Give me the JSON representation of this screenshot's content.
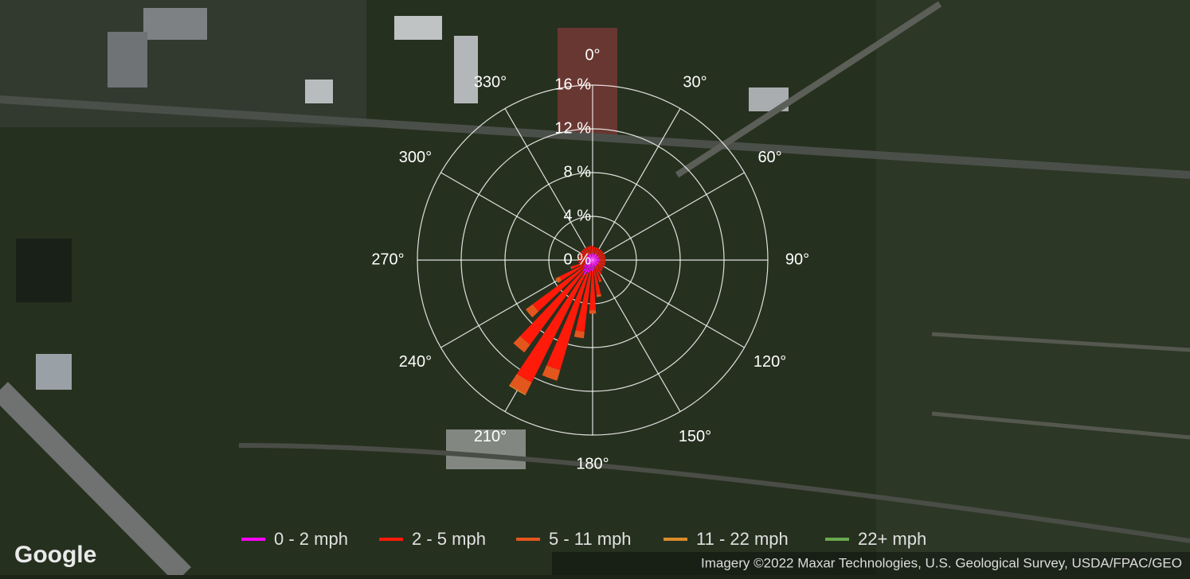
{
  "map": {
    "logo": "Google",
    "attribution": "Imagery ©2022 Maxar Technologies, U.S. Geological Survey, USDA/FPAC/GEO"
  },
  "chart_data": {
    "type": "windrose",
    "x": [
      0,
      10,
      20,
      30,
      40,
      50,
      60,
      70,
      80,
      90,
      100,
      110,
      120,
      130,
      140,
      150,
      160,
      170,
      180,
      190,
      200,
      210,
      220,
      230,
      240,
      250,
      260,
      270,
      280,
      290,
      300,
      310,
      320,
      330,
      340,
      350
    ],
    "series": [
      {
        "name": "0 - 2 mph",
        "color": "#ff00ff",
        "values": [
          0.6,
          0.6,
          0.6,
          0.6,
          0.6,
          0.6,
          0.6,
          0.6,
          0.6,
          0.6,
          0.6,
          0.6,
          0.6,
          0.6,
          0.6,
          0.6,
          0.6,
          0.8,
          1,
          1,
          1.2,
          1.5,
          1.3,
          1,
          0.8,
          0.7,
          0.6,
          0.6,
          0.6,
          0.6,
          0.6,
          0.6,
          0.6,
          0.6,
          0.6,
          0.6
        ]
      },
      {
        "name": "2 - 5 mph",
        "color": "#ff1a0a",
        "values": [
          0.7,
          0.6,
          0.6,
          0.6,
          0.6,
          0.6,
          0.6,
          0.6,
          0.6,
          0.6,
          0.6,
          0.6,
          0.6,
          0.6,
          0.7,
          0.9,
          1.4,
          2.4,
          3.6,
          5.6,
          9.3,
          11,
          8.3,
          5.8,
          2.6,
          1.3,
          0.7,
          0.7,
          0.7,
          0.7,
          0.7,
          0.7,
          0.7,
          0.7,
          0.7,
          0.7
        ]
      },
      {
        "name": "5 - 11 mph",
        "color": "#e3561e",
        "values": [
          0,
          0,
          0,
          0,
          0,
          0,
          0,
          0,
          0,
          0,
          0,
          0,
          0,
          0,
          0,
          0,
          0.1,
          0.2,
          0.3,
          0.6,
          1,
          1.2,
          0.9,
          0.8,
          0.4,
          0.1,
          0,
          0,
          0,
          0,
          0,
          0,
          0,
          0,
          0,
          0
        ]
      },
      {
        "name": "11 - 22 mph",
        "color": "#d98c2b",
        "values": [
          0,
          0,
          0,
          0,
          0,
          0,
          0,
          0,
          0,
          0,
          0,
          0,
          0,
          0,
          0,
          0,
          0,
          0,
          0,
          0,
          0,
          0.1,
          0,
          0,
          0,
          0,
          0,
          0,
          0,
          0,
          0,
          0,
          0,
          0,
          0,
          0
        ]
      },
      {
        "name": "22+ mph",
        "color": "#6aa84f",
        "values": [
          0,
          0,
          0,
          0,
          0,
          0,
          0,
          0,
          0,
          0,
          0,
          0,
          0,
          0,
          0,
          0,
          0,
          0,
          0,
          0,
          0,
          0,
          0,
          0,
          0,
          0,
          0,
          0,
          0,
          0,
          0,
          0,
          0,
          0,
          0,
          0
        ]
      }
    ],
    "rlim": [
      0,
      16
    ],
    "rticks": [
      {
        "value": 0,
        "label": "0 %"
      },
      {
        "value": 4,
        "label": "4 %"
      },
      {
        "value": 8,
        "label": "8 %"
      },
      {
        "value": 12,
        "label": "12 %"
      },
      {
        "value": 16,
        "label": "16 %"
      }
    ],
    "angleticks": [
      {
        "value": 0,
        "label": "0°"
      },
      {
        "value": 30,
        "label": "30°"
      },
      {
        "value": 60,
        "label": "60°"
      },
      {
        "value": 90,
        "label": "90°"
      },
      {
        "value": 120,
        "label": "120°"
      },
      {
        "value": 150,
        "label": "150°"
      },
      {
        "value": 180,
        "label": "180°"
      },
      {
        "value": 210,
        "label": "210°"
      },
      {
        "value": 240,
        "label": "240°"
      },
      {
        "value": 270,
        "label": "270°"
      },
      {
        "value": 300,
        "label": "300°"
      },
      {
        "value": 330,
        "label": "330°"
      }
    ],
    "grid": true
  }
}
